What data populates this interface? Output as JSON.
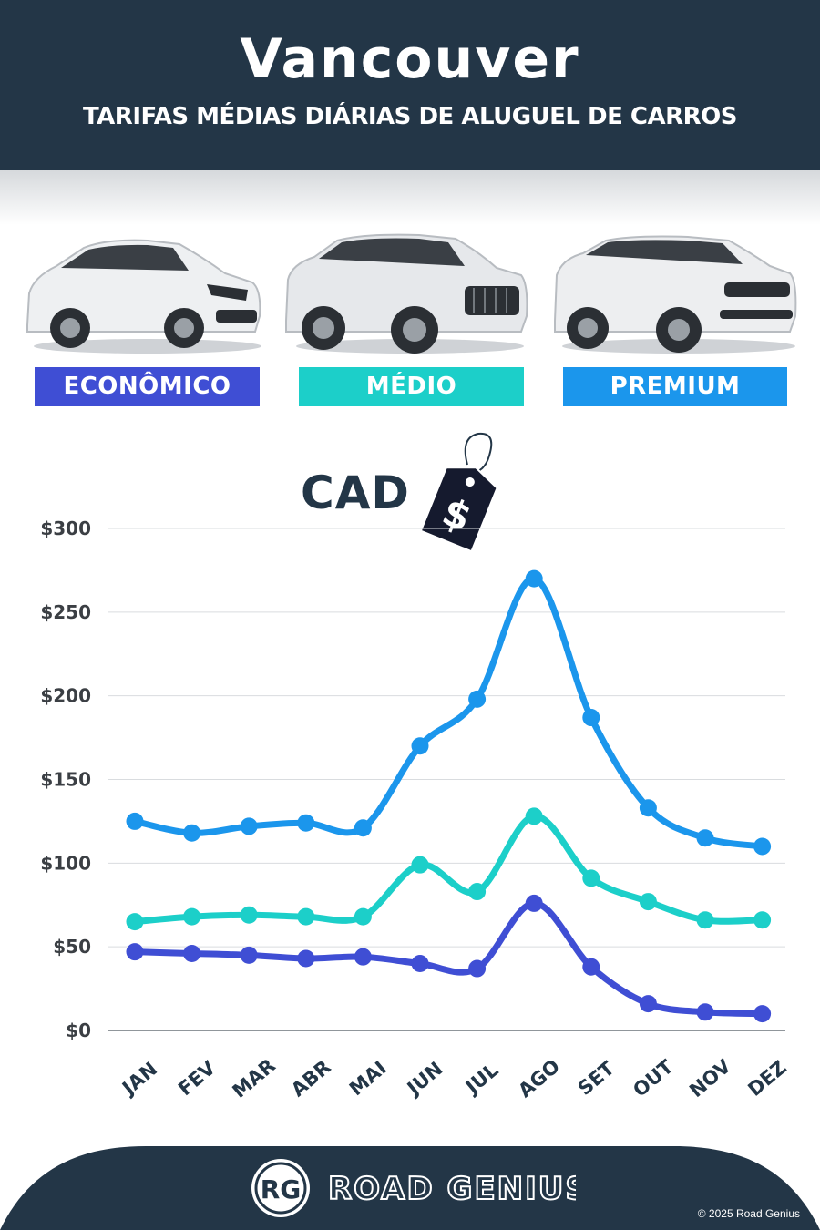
{
  "header": {
    "title": "Vancouver",
    "subtitle": "TARIFAS MÉDIAS DIÁRIAS DE ALUGUEL DE CARROS"
  },
  "categories": [
    {
      "label": "ECONÔMICO",
      "color": "#3f4ed4"
    },
    {
      "label": "MÉDIO",
      "color": "#1ccfc9"
    },
    {
      "label": "PREMIUM",
      "color": "#1b96ec"
    }
  ],
  "currency_label": "CAD",
  "tag_symbol": "$",
  "chart_data": {
    "type": "line",
    "categories": [
      "JAN",
      "FEV",
      "MAR",
      "ABR",
      "MAI",
      "JUN",
      "JUL",
      "AGO",
      "SET",
      "OUT",
      "NOV",
      "DEZ"
    ],
    "ylim": [
      0,
      300
    ],
    "yticks": [
      0,
      50,
      100,
      150,
      200,
      250,
      300
    ],
    "ytick_labels": [
      "$0",
      "$50",
      "$100",
      "$150",
      "$200",
      "$250",
      "$300"
    ],
    "grid": true,
    "series": [
      {
        "name": "PREMIUM",
        "color": "#1b96ec",
        "values": [
          125,
          118,
          122,
          124,
          121,
          170,
          198,
          270,
          187,
          133,
          115,
          110
        ]
      },
      {
        "name": "MÉDIO",
        "color": "#1ccfc9",
        "values": [
          65,
          68,
          69,
          68,
          68,
          99,
          83,
          128,
          91,
          77,
          66,
          66
        ]
      },
      {
        "name": "ECONÔMICO",
        "color": "#3f4ed4",
        "values": [
          47,
          46,
          45,
          43,
          44,
          40,
          37,
          76,
          38,
          16,
          11,
          10
        ]
      }
    ]
  },
  "footer": {
    "logo_mark": "RG",
    "brand": "ROAD GENIUS",
    "copyright": "© 2025 Road Genius"
  }
}
